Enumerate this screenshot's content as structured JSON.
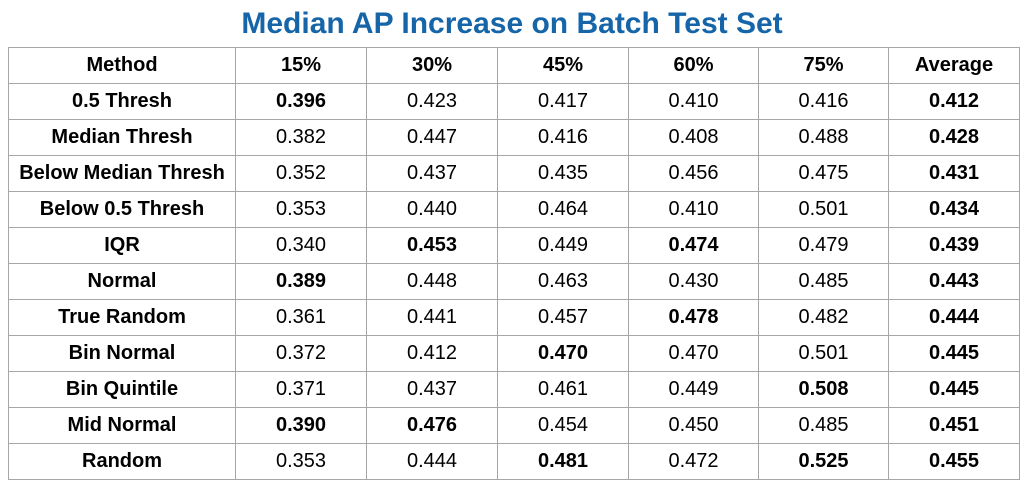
{
  "chart_data": {
    "type": "table",
    "title": "Median AP Increase on Batch Test Set",
    "columns": [
      "Method",
      "15%",
      "30%",
      "45%",
      "60%",
      "75%",
      "Average"
    ],
    "rows": [
      {
        "method": "0.5 Thresh",
        "values": [
          "0.396",
          "0.423",
          "0.417",
          "0.410",
          "0.416"
        ],
        "average": "0.412",
        "bold": [
          true,
          false,
          false,
          false,
          false
        ]
      },
      {
        "method": "Median Thresh",
        "values": [
          "0.382",
          "0.447",
          "0.416",
          "0.408",
          "0.488"
        ],
        "average": "0.428",
        "bold": [
          false,
          false,
          false,
          false,
          false
        ]
      },
      {
        "method": "Below Median Thresh",
        "values": [
          "0.352",
          "0.437",
          "0.435",
          "0.456",
          "0.475"
        ],
        "average": "0.431",
        "bold": [
          false,
          false,
          false,
          false,
          false
        ]
      },
      {
        "method": "Below 0.5 Thresh",
        "values": [
          "0.353",
          "0.440",
          "0.464",
          "0.410",
          "0.501"
        ],
        "average": "0.434",
        "bold": [
          false,
          false,
          false,
          false,
          false
        ]
      },
      {
        "method": "IQR",
        "values": [
          "0.340",
          "0.453",
          "0.449",
          "0.474",
          "0.479"
        ],
        "average": "0.439",
        "bold": [
          false,
          true,
          false,
          true,
          false
        ]
      },
      {
        "method": "Normal",
        "values": [
          "0.389",
          "0.448",
          "0.463",
          "0.430",
          "0.485"
        ],
        "average": "0.443",
        "bold": [
          true,
          false,
          false,
          false,
          false
        ]
      },
      {
        "method": "True Random",
        "values": [
          "0.361",
          "0.441",
          "0.457",
          "0.478",
          "0.482"
        ],
        "average": "0.444",
        "bold": [
          false,
          false,
          false,
          true,
          false
        ]
      },
      {
        "method": "Bin Normal",
        "values": [
          "0.372",
          "0.412",
          "0.470",
          "0.470",
          "0.501"
        ],
        "average": "0.445",
        "bold": [
          false,
          false,
          true,
          false,
          false
        ]
      },
      {
        "method": "Bin Quintile",
        "values": [
          "0.371",
          "0.437",
          "0.461",
          "0.449",
          "0.508"
        ],
        "average": "0.445",
        "bold": [
          false,
          false,
          false,
          false,
          true
        ]
      },
      {
        "method": "Mid Normal",
        "values": [
          "0.390",
          "0.476",
          "0.454",
          "0.450",
          "0.485"
        ],
        "average": "0.451",
        "bold": [
          true,
          true,
          false,
          false,
          false
        ]
      },
      {
        "method": "Random",
        "values": [
          "0.353",
          "0.444",
          "0.481",
          "0.472",
          "0.525"
        ],
        "average": "0.455",
        "bold": [
          false,
          false,
          true,
          false,
          true
        ]
      }
    ]
  },
  "colors": {
    "title": "#1565a8",
    "border": "#a6a6a6"
  }
}
